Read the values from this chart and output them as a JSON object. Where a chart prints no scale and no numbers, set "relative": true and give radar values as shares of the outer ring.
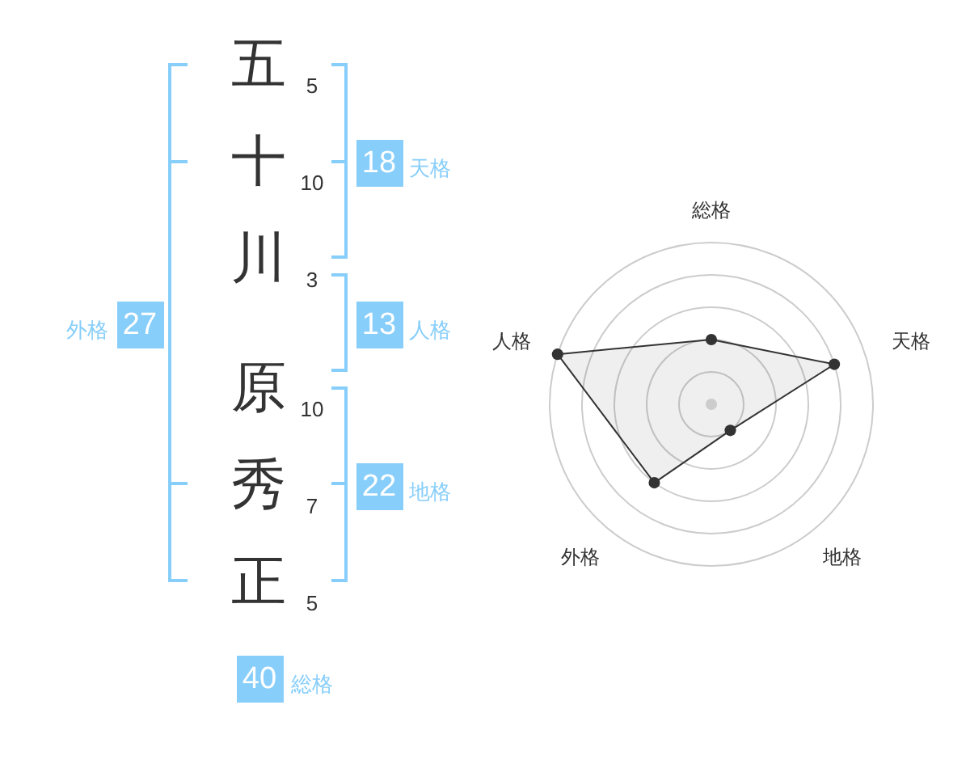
{
  "chart_data": [
    {
      "type": "other",
      "categories": [
        "五",
        "十",
        "川",
        "原",
        "秀",
        "正"
      ],
      "values": [
        5,
        10,
        3,
        10,
        7,
        5
      ],
      "data_labels": true,
      "annotations": [
        "18",
        "天格",
        "外格",
        "27",
        "13",
        "人格",
        "22",
        "地格",
        "40",
        "総格"
      ]
    },
    {
      "type": "radar",
      "categories": [
        "総格",
        "天格",
        "地格",
        "外格",
        "人格"
      ],
      "series": [
        {
          "color": "#333333",
          "values": [
            0.4,
            0.8,
            0.2,
            0.6,
            1
          ]
        }
      ],
      "relative": true,
      "grid": true,
      "marker": "circle",
      "line_style": "solid"
    }
  ]
}
